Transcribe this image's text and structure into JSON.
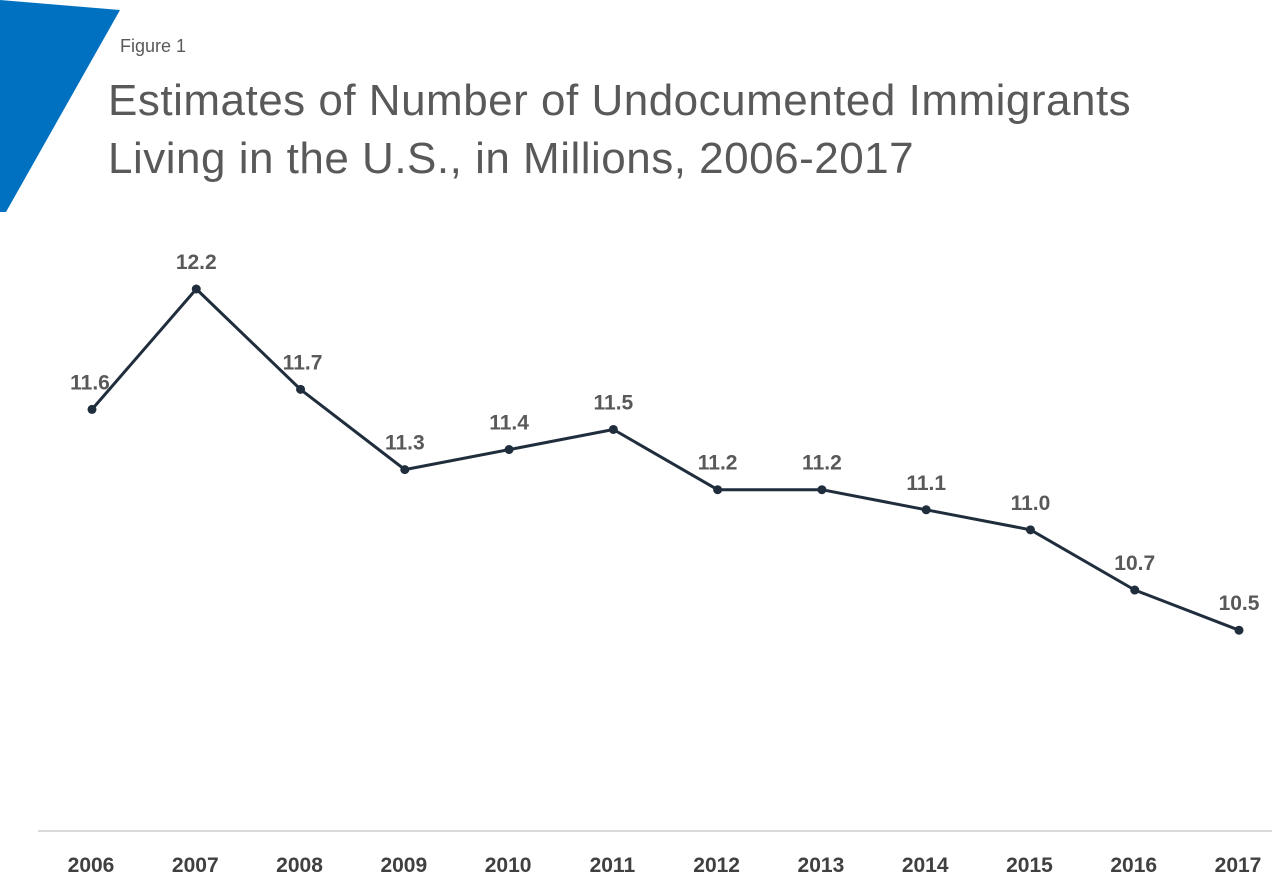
{
  "header": {
    "figure_label": "Figure 1",
    "title_line1": "Estimates of Number of Undocumented Immigrants",
    "title_line2": "Living in the U.S., in Millions, 2006-2017"
  },
  "colors": {
    "accent": "#0070c0",
    "line": "#1f2d3d",
    "text": "#595959",
    "axis": "#d9d9d9"
  },
  "chart_data": {
    "type": "line",
    "title": "Estimates of Number of Undocumented Immigrants Living in the U.S., in Millions, 2006-2017",
    "xlabel": "",
    "ylabel": "",
    "categories": [
      "2006",
      "2007",
      "2008",
      "2009",
      "2010",
      "2011",
      "2012",
      "2013",
      "2014",
      "2015",
      "2016",
      "2017"
    ],
    "series": [
      {
        "values": [
          11.6,
          12.2,
          11.7,
          11.3,
          11.4,
          11.5,
          11.2,
          11.2,
          11.1,
          11.0,
          10.7,
          10.5
        ],
        "labels": [
          "11.6",
          "12.2",
          "11.7",
          "11.3",
          "11.4",
          "11.5",
          "11.2",
          "11.2",
          "11.1",
          "11.0",
          "10.7",
          "10.5"
        ]
      }
    ],
    "grid": false,
    "legend": "none"
  }
}
